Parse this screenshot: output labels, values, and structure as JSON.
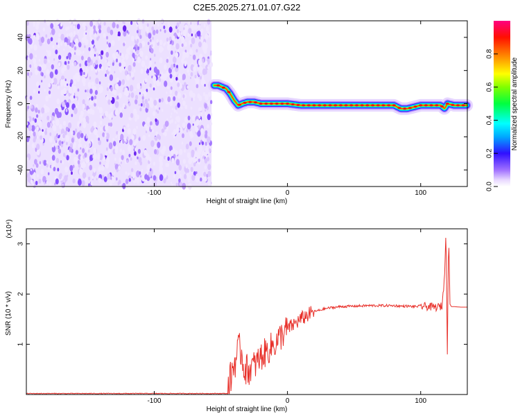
{
  "title": "C2E5.2025.271.01.07.G22",
  "chart_data": [
    {
      "type": "heatmap",
      "xlabel": "Height of straight line (km)",
      "ylabel": "Frequency (Hz)",
      "xlim": [
        -196,
        135
      ],
      "ylim": [
        -50,
        50
      ],
      "xticks": [
        -100,
        0,
        100
      ],
      "xtick_labels": [
        "-100",
        "0",
        "100"
      ],
      "yticks": [
        -40,
        -20,
        0,
        20,
        40
      ],
      "ytick_labels": [
        "-40",
        "-20",
        "0",
        "20",
        "40"
      ],
      "noise_region": {
        "x_from": -196,
        "x_to": -57
      },
      "ridge": {
        "x": [
          -55,
          -52,
          -49,
          -46,
          -43,
          -40,
          -37,
          -34,
          -30,
          -25,
          -20,
          -15,
          -10,
          -5,
          0,
          10,
          30,
          50,
          70,
          80,
          85,
          90,
          100,
          110,
          115,
          118,
          120,
          125,
          135
        ],
        "freq": [
          11,
          11,
          10,
          9,
          6,
          2,
          -1,
          0,
          1,
          1,
          0,
          0,
          0,
          0,
          0,
          -1,
          -1,
          -1,
          -1,
          -1,
          -3,
          -3,
          -1,
          -1,
          -1,
          -3,
          0,
          -1,
          -1
        ]
      },
      "colorbar": {
        "label": "Normalized spectral amplitude",
        "range": [
          0,
          1
        ],
        "ticks": [
          0.0,
          0.2,
          0.4,
          0.6,
          0.8
        ],
        "tick_labels": [
          "0.0",
          "0.2",
          "0.4",
          "0.6",
          "0.8"
        ]
      },
      "grid": false,
      "legend": "none"
    },
    {
      "type": "line",
      "xlabel": "Height of straight line (km)",
      "ylabel": "SNR (10 * v/v)",
      "scale_note": "(x10⁴)",
      "xlim": [
        -196,
        135
      ],
      "ylim": [
        0,
        3.3
      ],
      "xticks": [
        -100,
        0,
        100
      ],
      "xtick_labels": [
        "-100",
        "0",
        "100"
      ],
      "yticks": [
        1,
        2,
        3
      ],
      "ytick_labels": [
        "1",
        "2",
        "3"
      ],
      "series": [
        {
          "color": "#e8302a",
          "x": [
            -196,
            -60,
            -45,
            -43,
            -41,
            -39,
            -37,
            -35,
            -33,
            -30,
            -27,
            -24,
            -20,
            -16,
            -12,
            -8,
            -4,
            0,
            5,
            10,
            15,
            20,
            30,
            40,
            50,
            60,
            70,
            80,
            85,
            90,
            95,
            100,
            105,
            110,
            113,
            116,
            118,
            119,
            120,
            121,
            122,
            123,
            125,
            130,
            135
          ],
          "values": [
            0.02,
            0.02,
            0.02,
            0.3,
            0.5,
            0.7,
            0.85,
            0.9,
            0.6,
            0.45,
            0.55,
            0.6,
            0.75,
            0.85,
            0.95,
            1.05,
            1.2,
            1.3,
            1.4,
            1.5,
            1.58,
            1.65,
            1.72,
            1.75,
            1.76,
            1.77,
            1.77,
            1.77,
            1.76,
            1.76,
            1.75,
            1.76,
            1.75,
            1.74,
            1.74,
            1.76,
            2.4,
            3.3,
            0.8,
            3.2,
            1.8,
            1.75,
            1.75,
            1.74,
            1.74
          ]
        }
      ],
      "grid": false,
      "legend": "none"
    }
  ]
}
